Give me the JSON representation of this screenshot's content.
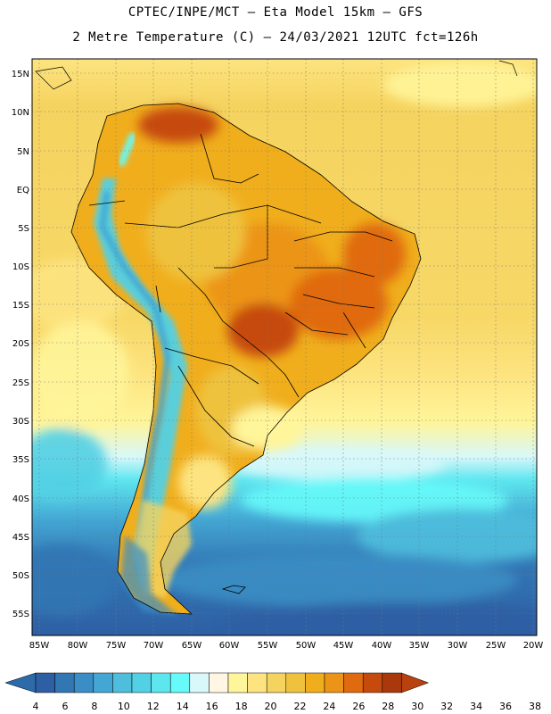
{
  "header": {
    "line1": "CPTEC/INPE/MCT –  Eta Model 15km – GFS",
    "line2": "2 Metre Temperature (C) – 24/03/2021 12UTC fct=126h"
  },
  "axes": {
    "lat_labels": [
      "15N",
      "10N",
      "5N",
      "EQ",
      "5S",
      "10S",
      "15S",
      "20S",
      "25S",
      "30S",
      "35S",
      "40S",
      "45S",
      "50S",
      "55S"
    ],
    "lon_labels": [
      "85W",
      "80W",
      "75W",
      "70W",
      "65W",
      "60W",
      "55W",
      "50W",
      "45W",
      "40W",
      "35W",
      "30W",
      "25W",
      "20W"
    ]
  },
  "legend": {
    "values": [
      "4",
      "6",
      "8",
      "10",
      "12",
      "14",
      "16",
      "18",
      "20",
      "22",
      "24",
      "26",
      "28",
      "30",
      "32",
      "34",
      "36",
      "38"
    ],
    "colors": [
      "#2e5fa4",
      "#3276b4",
      "#3b8ec5",
      "#43a6d3",
      "#4fbedd",
      "#52d0e4",
      "#5ee6ef",
      "#66fafa",
      "#d8f8fa",
      "#fff7e3",
      "#fff59a",
      "#fde480",
      "#f5d35f",
      "#efc23e",
      "#f0ae1d",
      "#ec9417",
      "#e06a0f",
      "#c64a0b",
      "#a9380c"
    ],
    "under_color": "#2c6aaa",
    "over_color": "#b8410e"
  }
}
